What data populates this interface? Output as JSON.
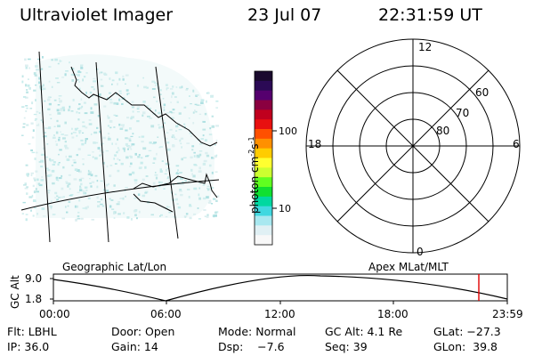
{
  "header": {
    "title": "Ultraviolet Imager",
    "date": "23 Jul 07",
    "time": "22:31:59 UT"
  },
  "colorbar": {
    "unit_label": "photon cm",
    "unit_exp1": "-2",
    "unit_s": "s",
    "unit_exp2": "-1",
    "tick_100": "100",
    "tick_10": "10",
    "colors_top_to_bottom": [
      "#1a0a2e",
      "#2b0a55",
      "#55006e",
      "#8a0040",
      "#c0001e",
      "#e81010",
      "#ff5000",
      "#ff9000",
      "#ffcc00",
      "#ffff30",
      "#ccff30",
      "#60ff20",
      "#10e030",
      "#00d8a0",
      "#40d8e0",
      "#a8e8f0",
      "#e0f0f4",
      "#f8f8f8"
    ]
  },
  "polar_plot": {
    "top_label": "12",
    "bottom_label": "0",
    "left_label": "18",
    "right_label": "6",
    "lat_60": "60",
    "lat_70": "70",
    "lat_80": "80"
  },
  "map_labels": {
    "geographic": "Geographic Lat/Lon",
    "apex": "Apex MLat/MLT"
  },
  "orbit_plot": {
    "y_axis_label": "GC Alt",
    "y_top": "9.0",
    "y_bottom": "1.8",
    "x_ticks": [
      "00:00",
      "06:00",
      "12:00",
      "18:00",
      "23:59"
    ],
    "marker_color": "#e00000"
  },
  "info_row1": {
    "flt": "Flt: LBHL",
    "door": "Door: Open",
    "mode": "Mode: Normal",
    "gc_alt": "GC Alt: 4.1 Re",
    "glat": "GLat: −27.3"
  },
  "info_row2": {
    "ip": "IP: 36.0",
    "gain": "Gain: 14",
    "dsp": "Dsp:    −7.6",
    "seq": "Seq: 39",
    "glon": "GLon:  39.8"
  }
}
